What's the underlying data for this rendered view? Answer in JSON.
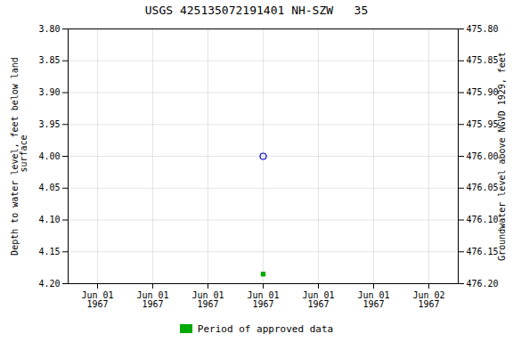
{
  "chart_data": {
    "type": "scatter",
    "title": "USGS 425135072191401 NH-SZW   35",
    "ylabel": "Depth to water level, feet below land\n surface",
    "y2label": "Groundwater level above NGVD 1929, feet",
    "categories": [
      "Jun 01\n1967",
      "Jun 01\n1967",
      "Jun 01\n1967",
      "Jun 01\n1967",
      "Jun 01\n1967",
      "Jun 01\n1967",
      "Jun 02\n1967"
    ],
    "series": [
      {
        "color": "#0000cc",
        "marker": "circle",
        "values": [
          null,
          null,
          null,
          4.0,
          null,
          null,
          null
        ]
      },
      {
        "name": "Period of approved data",
        "color": "#00aa00",
        "marker": "square",
        "values": [
          null,
          null,
          null,
          4.185,
          null,
          null,
          null
        ]
      }
    ],
    "ylim": [
      4.2,
      3.8
    ],
    "yticks": [
      {
        "value": 3.8,
        "label": "3.80"
      },
      {
        "value": 3.85,
        "label": "3.85"
      },
      {
        "value": 3.9,
        "label": "3.90"
      },
      {
        "value": 3.95,
        "label": "3.95"
      },
      {
        "value": 4.0,
        "label": "4.00"
      },
      {
        "value": 4.05,
        "label": "4.05"
      },
      {
        "value": 4.1,
        "label": "4.10"
      },
      {
        "value": 4.15,
        "label": "4.15"
      },
      {
        "value": 4.2,
        "label": "4.20"
      }
    ],
    "y2lim": [
      476.2,
      475.8
    ],
    "y2ticks": [
      {
        "value": 476.2,
        "label": "476.20"
      },
      {
        "value": 476.15,
        "label": "476.15"
      },
      {
        "value": 476.1,
        "label": "476.10"
      },
      {
        "value": 476.05,
        "label": "476.05"
      },
      {
        "value": 476.0,
        "label": "476.00"
      },
      {
        "value": 475.95,
        "label": "475.95"
      },
      {
        "value": 475.9,
        "label": "475.90"
      },
      {
        "value": 475.85,
        "label": "475.85"
      },
      {
        "value": 475.8,
        "label": "475.80"
      }
    ],
    "grid": true,
    "legend": "bottom"
  }
}
